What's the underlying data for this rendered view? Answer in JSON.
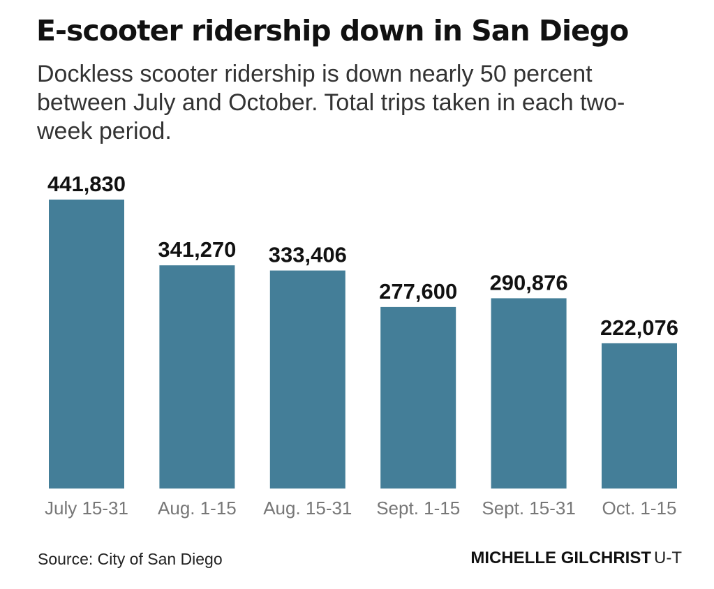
{
  "chart_data": {
    "type": "bar",
    "title": "E-scooter ridership down in San Diego",
    "subtitle": "Dockless scooter ridership is down nearly 50 percent between July and October. Total trips taken in each two-week period.",
    "categories": [
      "July 15-31",
      "Aug. 1-15",
      "Aug. 15-31",
      "Sept. 1-15",
      "Sept. 15-31",
      "Oct. 1-15"
    ],
    "values": [
      441830,
      341270,
      333406,
      277600,
      290876,
      222076
    ],
    "value_labels": [
      "441,830",
      "341,270",
      "333,406",
      "277,600",
      "290,876",
      "222,076"
    ],
    "xlabel": "",
    "ylabel": "",
    "ylim": [
      0,
      441830
    ],
    "grid": false,
    "legend": "none",
    "bar_color": "#447e98",
    "label_color": "#111111",
    "tick_color": "#777777"
  },
  "footer": {
    "source": "Source: City of San Diego",
    "credit_name": "MICHELLE GILCHRIST",
    "credit_org": "U-T"
  }
}
